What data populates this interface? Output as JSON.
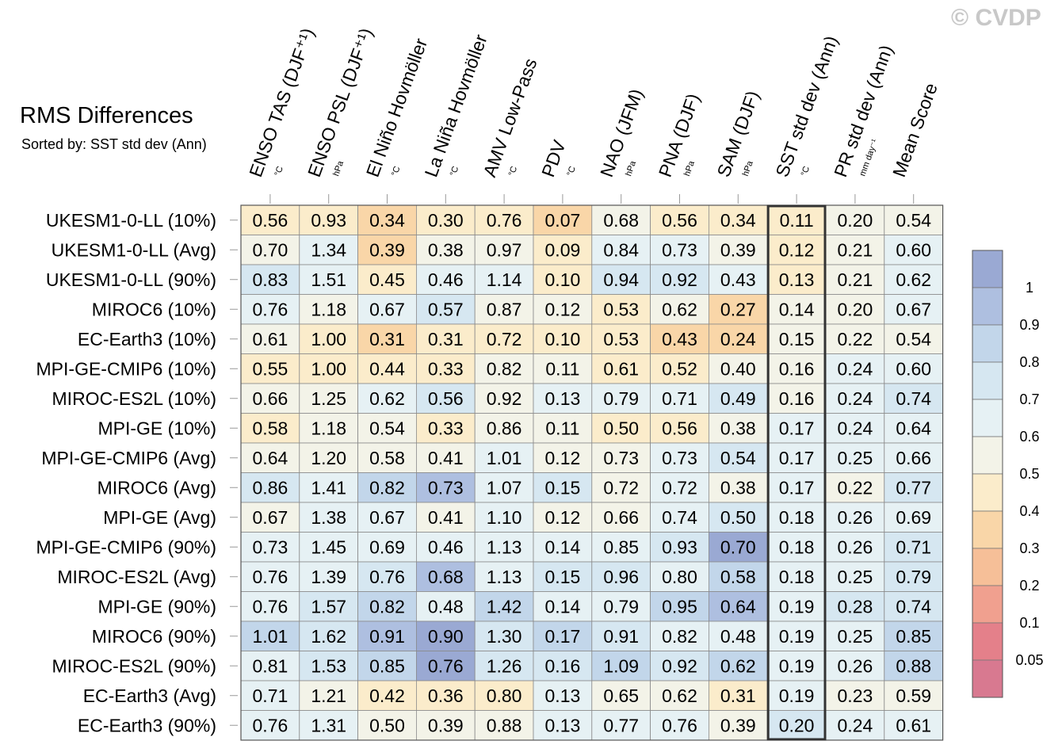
{
  "header": {
    "title": "RMS Differences",
    "subtitle": "Sorted by: SST std dev (Ann)",
    "watermark": "© CVDP"
  },
  "chart_data": {
    "type": "heatmap",
    "title": "RMS Differences",
    "subtitle": "Sorted by: SST std dev (Ann)",
    "highlighted_column": "SST std dev (Ann)",
    "columns": [
      {
        "label": "ENSO TAS (DJF⁺¹)",
        "unit": "°C"
      },
      {
        "label": "ENSO PSL (DJF⁺¹)",
        "unit": "hPa"
      },
      {
        "label": "El Niño Hovmöller",
        "unit": "°C"
      },
      {
        "label": "La Niña Hovmöller",
        "unit": "°C"
      },
      {
        "label": "AMV Low-Pass",
        "unit": "°C"
      },
      {
        "label": "PDV",
        "unit": "°C"
      },
      {
        "label": "NAO (JFM)",
        "unit": "hPa"
      },
      {
        "label": "PNA (DJF)",
        "unit": "hPa"
      },
      {
        "label": "SAM (DJF)",
        "unit": "hPa"
      },
      {
        "label": "SST std dev (Ann)",
        "unit": "°C"
      },
      {
        "label": "PR std dev (Ann)",
        "unit": "mm day⁻¹"
      },
      {
        "label": "Mean Score",
        "unit": ""
      }
    ],
    "rows": [
      "UKESM1-0-LL (10%)",
      "UKESM1-0-LL (Avg)",
      "UKESM1-0-LL (90%)",
      "MIROC6 (10%)",
      "EC-Earth3 (10%)",
      "MPI-GE-CMIP6 (10%)",
      "MIROC-ES2L (10%)",
      "MPI-GE (10%)",
      "MPI-GE-CMIP6 (Avg)",
      "MIROC6 (Avg)",
      "MPI-GE (Avg)",
      "MPI-GE-CMIP6 (90%)",
      "MIROC-ES2L (Avg)",
      "MPI-GE (90%)",
      "MIROC6 (90%)",
      "MIROC-ES2L (90%)",
      "EC-Earth3 (Avg)",
      "EC-Earth3 (90%)"
    ],
    "values": [
      [
        "0.56",
        "0.93",
        "0.34",
        "0.30",
        "0.76",
        "0.07",
        "0.68",
        "0.56",
        "0.34",
        "0.11",
        "0.20",
        "0.54"
      ],
      [
        "0.70",
        "1.34",
        "0.39",
        "0.38",
        "0.97",
        "0.09",
        "0.84",
        "0.73",
        "0.39",
        "0.12",
        "0.21",
        "0.60"
      ],
      [
        "0.83",
        "1.51",
        "0.45",
        "0.46",
        "1.14",
        "0.10",
        "0.94",
        "0.92",
        "0.43",
        "0.13",
        "0.21",
        "0.62"
      ],
      [
        "0.76",
        "1.18",
        "0.67",
        "0.57",
        "0.87",
        "0.12",
        "0.53",
        "0.62",
        "0.27",
        "0.14",
        "0.20",
        "0.67"
      ],
      [
        "0.61",
        "1.00",
        "0.31",
        "0.31",
        "0.72",
        "0.10",
        "0.53",
        "0.43",
        "0.24",
        "0.15",
        "0.22",
        "0.54"
      ],
      [
        "0.55",
        "1.00",
        "0.44",
        "0.33",
        "0.82",
        "0.11",
        "0.61",
        "0.52",
        "0.40",
        "0.16",
        "0.24",
        "0.60"
      ],
      [
        "0.66",
        "1.25",
        "0.62",
        "0.56",
        "0.92",
        "0.13",
        "0.79",
        "0.71",
        "0.49",
        "0.16",
        "0.24",
        "0.74"
      ],
      [
        "0.58",
        "1.18",
        "0.54",
        "0.33",
        "0.86",
        "0.11",
        "0.50",
        "0.56",
        "0.38",
        "0.17",
        "0.24",
        "0.64"
      ],
      [
        "0.64",
        "1.20",
        "0.58",
        "0.41",
        "1.01",
        "0.12",
        "0.73",
        "0.73",
        "0.54",
        "0.17",
        "0.25",
        "0.66"
      ],
      [
        "0.86",
        "1.41",
        "0.82",
        "0.73",
        "1.07",
        "0.15",
        "0.72",
        "0.72",
        "0.38",
        "0.17",
        "0.22",
        "0.77"
      ],
      [
        "0.67",
        "1.38",
        "0.67",
        "0.41",
        "1.10",
        "0.12",
        "0.66",
        "0.74",
        "0.50",
        "0.18",
        "0.26",
        "0.69"
      ],
      [
        "0.73",
        "1.45",
        "0.69",
        "0.46",
        "1.13",
        "0.14",
        "0.85",
        "0.93",
        "0.70",
        "0.18",
        "0.26",
        "0.71"
      ],
      [
        "0.76",
        "1.39",
        "0.76",
        "0.68",
        "1.13",
        "0.15",
        "0.96",
        "0.80",
        "0.58",
        "0.18",
        "0.25",
        "0.79"
      ],
      [
        "0.76",
        "1.57",
        "0.82",
        "0.48",
        "1.42",
        "0.14",
        "0.79",
        "0.95",
        "0.64",
        "0.19",
        "0.28",
        "0.74"
      ],
      [
        "1.01",
        "1.62",
        "0.91",
        "0.90",
        "1.30",
        "0.17",
        "0.91",
        "0.82",
        "0.48",
        "0.19",
        "0.25",
        "0.85"
      ],
      [
        "0.81",
        "1.53",
        "0.85",
        "0.76",
        "1.26",
        "0.16",
        "1.09",
        "0.92",
        "0.62",
        "0.19",
        "0.26",
        "0.88"
      ],
      [
        "0.71",
        "1.21",
        "0.42",
        "0.36",
        "0.80",
        "0.13",
        "0.65",
        "0.62",
        "0.31",
        "0.19",
        "0.23",
        "0.59"
      ],
      [
        "0.76",
        "1.31",
        "0.50",
        "0.39",
        "0.88",
        "0.13",
        "0.77",
        "0.76",
        "0.39",
        "0.20",
        "0.24",
        "0.61"
      ]
    ],
    "colorbar": {
      "labels": [
        "1",
        "0.9",
        "0.8",
        "0.7",
        "0.6",
        "0.5",
        "0.4",
        "0.3",
        "0.2",
        "0.1",
        "0.05"
      ],
      "colors": [
        "#9aa9d3",
        "#aebfe0",
        "#c2d6ea",
        "#d6e7f1",
        "#e6f1f4",
        "#f3f3e8",
        "#fbeccb",
        "#f9d6a8",
        "#f6bf98",
        "#f0a08f",
        "#e4808a",
        "#d87990"
      ]
    }
  }
}
